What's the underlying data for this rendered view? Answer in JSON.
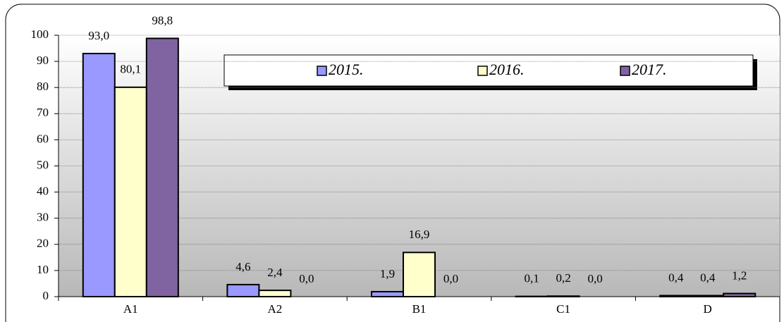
{
  "chart_data": {
    "type": "bar",
    "categories": [
      "A1",
      "A2",
      "B1",
      "C1",
      "D"
    ],
    "series": [
      {
        "name": "2015.",
        "color": "#9999ff",
        "values": [
          93.0,
          4.6,
          1.9,
          0.1,
          0.4
        ],
        "value_labels": [
          "93,0",
          "4,6",
          "1,9",
          "0,1",
          "0,4"
        ]
      },
      {
        "name": "2016.",
        "color": "#ffffcc",
        "values": [
          80.1,
          2.4,
          16.9,
          0.2,
          0.4
        ],
        "value_labels": [
          "80,1",
          "2,4",
          "16,9",
          "0,2",
          "0,4"
        ]
      },
      {
        "name": "2017.",
        "color": "#8064a2",
        "values": [
          98.8,
          0.0,
          0.0,
          0.0,
          1.2
        ],
        "value_labels": [
          "98,8",
          "0,0",
          "0,0",
          "0,0",
          "1,2"
        ]
      }
    ],
    "ylim": [
      0,
      100
    ],
    "yticks": [
      0,
      10,
      20,
      30,
      40,
      50,
      60,
      70,
      80,
      90,
      100
    ],
    "grid": true,
    "legend": "top-right"
  }
}
